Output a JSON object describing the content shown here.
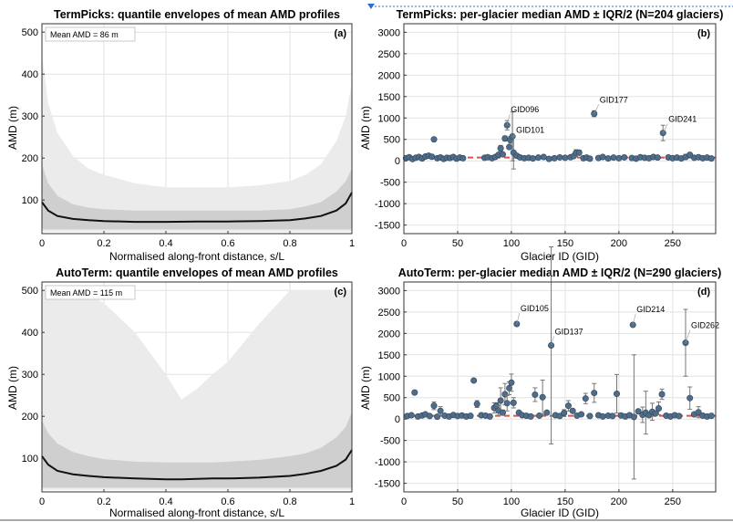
{
  "chart_data": [
    {
      "type": "area",
      "title": "TermPicks: quantile envelopes of mean AMD profiles",
      "panel_label": "(a)",
      "annotation": "Mean AMD = 86 m",
      "xlabel": "Normalised along-front distance, s/L",
      "ylabel": "AMD (m)",
      "xlim": [
        0,
        1
      ],
      "ylim": [
        20,
        520
      ],
      "xticks": [
        0,
        0.2,
        0.4,
        0.6,
        0.8,
        1
      ],
      "xtick_labels": [
        "0",
        "0.2",
        "0.4",
        "0.6",
        "0.8",
        "1"
      ],
      "yticks": [
        100,
        200,
        300,
        400,
        500
      ],
      "yticks_labels": [
        "100",
        "200",
        "300",
        "400",
        "500"
      ],
      "grid": true,
      "x": [
        0,
        0.02,
        0.05,
        0.1,
        0.15,
        0.2,
        0.3,
        0.4,
        0.5,
        0.6,
        0.7,
        0.8,
        0.85,
        0.9,
        0.95,
        0.98,
        1
      ],
      "series": [
        {
          "outer_upper": [
            450,
            330,
            260,
            205,
            175,
            160,
            140,
            130,
            130,
            130,
            135,
            145,
            160,
            185,
            240,
            300,
            380
          ]
        },
        {
          "outer_lower": [
            25,
            25,
            25,
            25,
            25,
            25,
            25,
            25,
            25,
            25,
            25,
            25,
            25,
            25,
            25,
            25,
            25
          ]
        },
        {
          "inner_upper": [
            185,
            140,
            110,
            90,
            82,
            78,
            75,
            75,
            75,
            75,
            75,
            78,
            85,
            95,
            120,
            145,
            175
          ]
        },
        {
          "inner_lower": [
            30,
            30,
            30,
            30,
            30,
            30,
            30,
            30,
            30,
            30,
            30,
            30,
            30,
            30,
            30,
            30,
            30
          ]
        },
        {
          "median": [
            95,
            75,
            62,
            55,
            52,
            50,
            48,
            48,
            49,
            49,
            50,
            52,
            56,
            62,
            75,
            92,
            118
          ]
        }
      ]
    },
    {
      "type": "scatter",
      "title": "TermPicks:  per-glacier  median  AMD  ± IQR/2  (N=204  glaciers)",
      "panel_label": "(b)",
      "xlabel": "Glacier ID (GID)",
      "ylabel": "AMD (m)",
      "xlim": [
        0,
        290
      ],
      "ylim": [
        -1700,
        3200
      ],
      "xticks": [
        0,
        50,
        100,
        150,
        200,
        250
      ],
      "xtick_labels": [
        "0",
        "50",
        "100",
        "150",
        "200",
        "250"
      ],
      "yticks": [
        3000,
        2500,
        2000,
        1500,
        1000,
        500,
        0,
        -500,
        -1000,
        -1500
      ],
      "ytick_labels": [
        "3000",
        "2500",
        "2000",
        "1500",
        "1000",
        "500",
        "0",
        "-500",
        "-1000",
        "-1500"
      ],
      "grid": true,
      "reference_line": 75,
      "labels": [
        "GID096",
        "GID101",
        "GID177",
        "GID241"
      ],
      "points": [
        {
          "gid": 2,
          "y": 60
        },
        {
          "gid": 5,
          "y": 85
        },
        {
          "gid": 8,
          "y": 40
        },
        {
          "gid": 11,
          "y": 70
        },
        {
          "gid": 14,
          "y": 90
        },
        {
          "gid": 17,
          "y": 55
        },
        {
          "gid": 20,
          "y": 100
        },
        {
          "gid": 23,
          "y": 120
        },
        {
          "gid": 26,
          "y": 95
        },
        {
          "gid": 28,
          "y": 500
        },
        {
          "gid": 31,
          "y": 60
        },
        {
          "gid": 34,
          "y": 80
        },
        {
          "gid": 37,
          "y": 45
        },
        {
          "gid": 40,
          "y": 70
        },
        {
          "gid": 43,
          "y": 65
        },
        {
          "gid": 46,
          "y": 90
        },
        {
          "gid": 49,
          "y": 50
        },
        {
          "gid": 52,
          "y": 75
        },
        {
          "gid": 55,
          "y": 60
        },
        {
          "gid": 75,
          "y": 70
        },
        {
          "gid": 78,
          "y": 85
        },
        {
          "gid": 82,
          "y": 60
        },
        {
          "gid": 85,
          "y": 90
        },
        {
          "gid": 88,
          "y": 140
        },
        {
          "gid": 90,
          "y": 290,
          "err": 70
        },
        {
          "gid": 92,
          "y": 150,
          "err": 30
        },
        {
          "gid": 94,
          "y": 520,
          "err": 60
        },
        {
          "gid": 96,
          "y": 830,
          "err": 110
        },
        {
          "gid": 98,
          "y": 320
        },
        {
          "gid": 99,
          "y": 490,
          "err": 80
        },
        {
          "gid": 101,
          "y": 570,
          "err": 570
        },
        {
          "gid": 102,
          "y": 190,
          "err": 380
        },
        {
          "gid": 105,
          "y": 120
        },
        {
          "gid": 108,
          "y": 80
        },
        {
          "gid": 112,
          "y": 60
        },
        {
          "gid": 116,
          "y": 70
        },
        {
          "gid": 120,
          "y": 55
        },
        {
          "gid": 125,
          "y": 75
        },
        {
          "gid": 130,
          "y": 90
        },
        {
          "gid": 135,
          "y": 45
        },
        {
          "gid": 140,
          "y": 60
        },
        {
          "gid": 145,
          "y": 80
        },
        {
          "gid": 150,
          "y": 70
        },
        {
          "gid": 155,
          "y": 85
        },
        {
          "gid": 158,
          "y": 110
        },
        {
          "gid": 160,
          "y": 180,
          "err": 80
        },
        {
          "gid": 163,
          "y": 190,
          "err": 60
        },
        {
          "gid": 167,
          "y": 60
        },
        {
          "gid": 170,
          "y": 75
        },
        {
          "gid": 173,
          "y": 50
        },
        {
          "gid": 177,
          "y": 1100,
          "err": 70
        },
        {
          "gid": 181,
          "y": 65
        },
        {
          "gid": 185,
          "y": 90
        },
        {
          "gid": 190,
          "y": 55
        },
        {
          "gid": 195,
          "y": 75
        },
        {
          "gid": 200,
          "y": 60
        },
        {
          "gid": 205,
          "y": 80
        },
        {
          "gid": 212,
          "y": 65
        },
        {
          "gid": 216,
          "y": 50
        },
        {
          "gid": 220,
          "y": 85
        },
        {
          "gid": 224,
          "y": 70
        },
        {
          "gid": 228,
          "y": 60
        },
        {
          "gid": 232,
          "y": 90
        },
        {
          "gid": 236,
          "y": 75
        },
        {
          "gid": 241,
          "y": 650,
          "err": 180
        },
        {
          "gid": 246,
          "y": 80
        },
        {
          "gid": 250,
          "y": 60
        },
        {
          "gid": 254,
          "y": 75
        },
        {
          "gid": 258,
          "y": 55
        },
        {
          "gid": 262,
          "y": 90,
          "err": 60
        },
        {
          "gid": 266,
          "y": 140
        },
        {
          "gid": 270,
          "y": 70
        },
        {
          "gid": 274,
          "y": 85
        },
        {
          "gid": 278,
          "y": 60
        },
        {
          "gid": 282,
          "y": 75
        },
        {
          "gid": 286,
          "y": 55
        }
      ]
    },
    {
      "type": "area",
      "title": "AutoTerm: quantile envelopes of mean AMD profiles",
      "panel_label": "(c)",
      "annotation": "Mean AMD = 115 m",
      "xlabel": "Normalised along-front distance, s/L",
      "ylabel": "AMD (m)",
      "xlim": [
        0,
        1
      ],
      "ylim": [
        20,
        520
      ],
      "xticks": [
        0,
        0.2,
        0.4,
        0.6,
        0.8,
        1
      ],
      "xtick_labels": [
        "0",
        "0.2",
        "0.4",
        "0.6",
        "0.8",
        "1"
      ],
      "yticks": [
        100,
        200,
        300,
        400,
        500
      ],
      "yticks_labels": [
        "100",
        "200",
        "300",
        "400",
        "500"
      ],
      "grid": true,
      "x": [
        0,
        0.02,
        0.05,
        0.1,
        0.15,
        0.2,
        0.3,
        0.4,
        0.45,
        0.5,
        0.55,
        0.6,
        0.7,
        0.8,
        0.85,
        0.9,
        0.95,
        0.98,
        1
      ],
      "series": [
        {
          "outer_upper": [
            500,
            500,
            500,
            500,
            490,
            470,
            400,
            300,
            240,
            265,
            300,
            330,
            420,
            500,
            500,
            500,
            500,
            500,
            500
          ]
        },
        {
          "outer_lower": [
            25,
            25,
            25,
            25,
            25,
            25,
            25,
            25,
            25,
            25,
            25,
            25,
            25,
            25,
            25,
            25,
            25,
            25,
            25
          ]
        },
        {
          "inner_upper": [
            190,
            160,
            135,
            115,
            105,
            98,
            92,
            90,
            90,
            90,
            90,
            92,
            96,
            105,
            112,
            125,
            150,
            175,
            210
          ]
        },
        {
          "inner_lower": [
            30,
            30,
            30,
            30,
            30,
            30,
            30,
            30,
            30,
            30,
            30,
            30,
            30,
            30,
            30,
            30,
            30,
            30,
            30
          ]
        },
        {
          "median": [
            105,
            85,
            70,
            62,
            58,
            55,
            52,
            50,
            50,
            51,
            52,
            52,
            54,
            58,
            63,
            70,
            82,
            97,
            120
          ]
        }
      ]
    },
    {
      "type": "scatter",
      "title": "AutoTerm:  per-glacier  median  AMD  ± IQR/2  (N=290  glaciers)",
      "panel_label": "(d)",
      "xlabel": "Glacier ID (GID)",
      "ylabel": "AMD (m)",
      "xlim": [
        0,
        290
      ],
      "ylim": [
        -1700,
        3200
      ],
      "xticks": [
        0,
        50,
        100,
        150,
        200,
        250
      ],
      "xtick_labels": [
        "0",
        "50",
        "100",
        "150",
        "200",
        "250"
      ],
      "yticks": [
        3000,
        2500,
        2000,
        1500,
        1000,
        500,
        0,
        -500,
        -1000,
        -1500
      ],
      "ytick_labels": [
        "3000",
        "2500",
        "2000",
        "1500",
        "1000",
        "500",
        "0",
        "-500",
        "-1000",
        "-1500"
      ],
      "grid": true,
      "reference_line": 75,
      "labels": [
        "GID105",
        "GID137",
        "GID214",
        "GID262"
      ],
      "points": [
        {
          "gid": 3,
          "y": 70
        },
        {
          "gid": 7,
          "y": 90
        },
        {
          "gid": 10,
          "y": 620
        },
        {
          "gid": 13,
          "y": 60
        },
        {
          "gid": 17,
          "y": 85
        },
        {
          "gid": 20,
          "y": 110
        },
        {
          "gid": 24,
          "y": 70
        },
        {
          "gid": 28,
          "y": 310,
          "err": 90
        },
        {
          "gid": 31,
          "y": 55
        },
        {
          "gid": 34,
          "y": 190,
          "err": 100
        },
        {
          "gid": 38,
          "y": 80
        },
        {
          "gid": 42,
          "y": 60
        },
        {
          "gid": 46,
          "y": 95
        },
        {
          "gid": 50,
          "y": 70
        },
        {
          "gid": 54,
          "y": 85
        },
        {
          "gid": 58,
          "y": 60
        },
        {
          "gid": 62,
          "y": 75
        },
        {
          "gid": 65,
          "y": 900
        },
        {
          "gid": 68,
          "y": 350,
          "err": 80
        },
        {
          "gid": 72,
          "y": 90
        },
        {
          "gid": 76,
          "y": 80
        },
        {
          "gid": 80,
          "y": 60
        },
        {
          "gid": 84,
          "y": 260,
          "err": 120
        },
        {
          "gid": 86,
          "y": 310,
          "err": 70
        },
        {
          "gid": 88,
          "y": 200,
          "err": 110
        },
        {
          "gid": 90,
          "y": 430,
          "err": 300
        },
        {
          "gid": 92,
          "y": 150,
          "err": 60
        },
        {
          "gid": 94,
          "y": 580,
          "err": 250
        },
        {
          "gid": 96,
          "y": 370,
          "err": 180
        },
        {
          "gid": 98,
          "y": 720,
          "err": 150
        },
        {
          "gid": 100,
          "y": 850,
          "err": 200
        },
        {
          "gid": 102,
          "y": 380,
          "err": 120
        },
        {
          "gid": 105,
          "y": 2220
        },
        {
          "gid": 107,
          "y": 150
        },
        {
          "gid": 110,
          "y": 90
        },
        {
          "gid": 114,
          "y": 75
        },
        {
          "gid": 118,
          "y": 60
        },
        {
          "gid": 122,
          "y": 570,
          "err": 160
        },
        {
          "gid": 126,
          "y": 80
        },
        {
          "gid": 129,
          "y": 510,
          "err": 400
        },
        {
          "gid": 133,
          "y": 150
        },
        {
          "gid": 137,
          "y": 1720,
          "err": 2300
        },
        {
          "gid": 141,
          "y": 90
        },
        {
          "gid": 145,
          "y": 70
        },
        {
          "gid": 149,
          "y": 140,
          "err": 80
        },
        {
          "gid": 153,
          "y": 310,
          "err": 120
        },
        {
          "gid": 157,
          "y": 190
        },
        {
          "gid": 161,
          "y": 80
        },
        {
          "gid": 165,
          "y": 110
        },
        {
          "gid": 169,
          "y": 480,
          "err": 120
        },
        {
          "gid": 173,
          "y": 70
        },
        {
          "gid": 177,
          "y": 610,
          "err": 220
        },
        {
          "gid": 181,
          "y": 90
        },
        {
          "gid": 185,
          "y": 60
        },
        {
          "gid": 190,
          "y": 80
        },
        {
          "gid": 194,
          "y": 70
        },
        {
          "gid": 198,
          "y": 590,
          "err": 450
        },
        {
          "gid": 202,
          "y": 85
        },
        {
          "gid": 206,
          "y": 60
        },
        {
          "gid": 210,
          "y": 90
        },
        {
          "gid": 213,
          "y": 2200
        },
        {
          "gid": 214,
          "y": 50,
          "err": 1450
        },
        {
          "gid": 218,
          "y": 180
        },
        {
          "gid": 222,
          "y": 100,
          "err": 180
        },
        {
          "gid": 225,
          "y": 150,
          "err": 500
        },
        {
          "gid": 228,
          "y": 90
        },
        {
          "gid": 231,
          "y": 170,
          "err": 200
        },
        {
          "gid": 234,
          "y": 130
        },
        {
          "gid": 237,
          "y": 250,
          "err": 150
        },
        {
          "gid": 240,
          "y": 580,
          "err": 120
        },
        {
          "gid": 244,
          "y": 80
        },
        {
          "gid": 248,
          "y": 60
        },
        {
          "gid": 252,
          "y": 90
        },
        {
          "gid": 256,
          "y": 70
        },
        {
          "gid": 262,
          "y": 1780,
          "err": 780
        },
        {
          "gid": 266,
          "y": 490,
          "err": 260
        },
        {
          "gid": 270,
          "y": 110
        },
        {
          "gid": 274,
          "y": 160,
          "err": 130
        },
        {
          "gid": 278,
          "y": 80
        },
        {
          "gid": 282,
          "y": 60
        },
        {
          "gid": 286,
          "y": 75
        }
      ]
    }
  ]
}
